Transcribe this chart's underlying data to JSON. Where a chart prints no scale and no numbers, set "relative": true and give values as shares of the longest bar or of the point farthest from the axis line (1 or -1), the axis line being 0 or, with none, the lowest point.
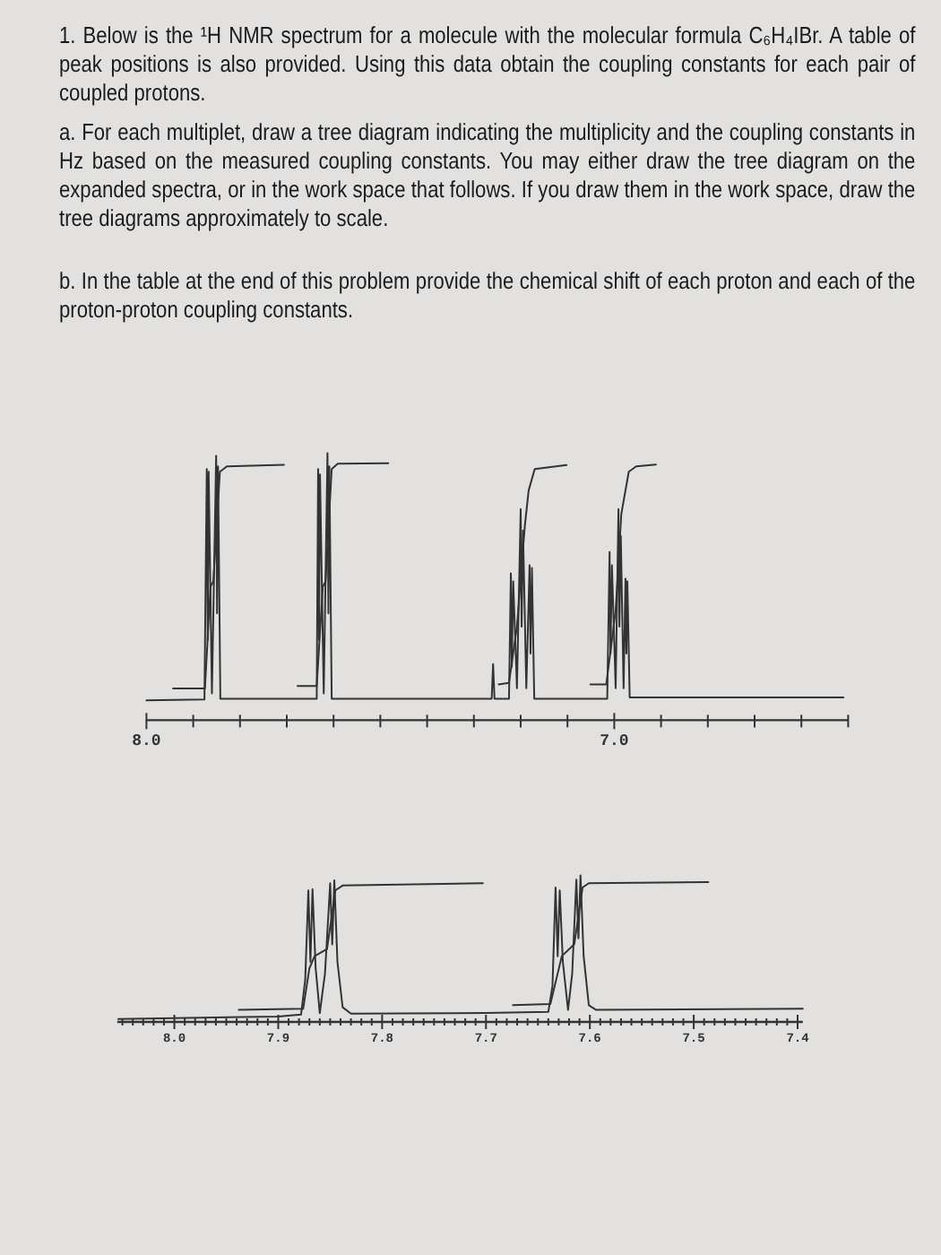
{
  "chart_data": [
    {
      "type": "line",
      "title": "1. Below is the ¹H NMR spectrum for a molecule with the molecular formula C₆H₄IBr. A table of peak positions is also provided. Using this data obtain the coupling constants for each pair of coupled protons.",
      "annotations": [
        "a. For each multiplet, draw a tree diagram indicating the multiplicity and the coupling constants in Hz based on the measured coupling constants. You may either draw the tree diagram on the expanded spectra, or in the work space that follows. If you draw them in the work space, draw the tree diagrams approximately to scale.",
        "b. In the table at the end of this problem provide the chemical shift of each proton and each of the proton-proton coupling constants."
      ],
      "relative": true,
      "xlim": [
        8.0,
        6.5
      ],
      "xticks": [
        {
          "value": 8.0,
          "label": "8.0"
        },
        {
          "value": 7.9,
          "label": null
        },
        {
          "value": 7.8,
          "label": null
        },
        {
          "value": 7.7,
          "label": null
        },
        {
          "value": 7.6,
          "label": null
        },
        {
          "value": 7.5,
          "label": null
        },
        {
          "value": 7.4,
          "label": null
        },
        {
          "value": 7.3,
          "label": null
        },
        {
          "value": 7.2,
          "label": null
        },
        {
          "value": 7.1,
          "label": null
        },
        {
          "value": 7.0,
          "label": "7.0"
        },
        {
          "value": 6.9,
          "label": null
        },
        {
          "value": 6.8,
          "label": null
        },
        {
          "value": 6.7,
          "label": null
        },
        {
          "value": 6.6,
          "label": null
        },
        {
          "value": 6.5,
          "label": null
        }
      ],
      "series": [
        {
          "color": "#333333",
          "x": [
            8.0,
            7.876,
            7.871,
            7.869,
            7.867,
            7.86,
            7.851,
            7.849,
            7.847,
            7.842,
            7.636,
            7.633,
            7.631,
            7.629,
            7.621,
            7.613,
            7.611,
            7.609,
            7.604,
            7.262,
            7.259,
            7.256,
            7.225,
            7.221,
            7.219,
            7.216,
            7.208,
            7.2,
            7.198,
            7.195,
            7.188,
            7.181,
            7.179,
            7.176,
            7.171,
            7.015,
            7.01,
            7.008,
            7.005,
            6.997,
            6.991,
            6.989,
            6.986,
            6.98,
            6.976,
            6.974,
            6.972,
            6.967,
            6.51
          ],
          "values": [
            0.074,
            0.078,
            0.94,
            0.3,
            0.93,
            0.1,
            0.99,
            0.4,
            0.95,
            0.08,
            0.08,
            0.94,
            0.3,
            0.92,
            0.1,
            1.0,
            0.4,
            0.95,
            0.08,
            0.08,
            0.21,
            0.08,
            0.08,
            0.55,
            0.2,
            0.52,
            0.12,
            0.79,
            0.35,
            0.71,
            0.12,
            0.58,
            0.25,
            0.57,
            0.08,
            0.08,
            0.63,
            0.25,
            0.58,
            0.12,
            0.79,
            0.35,
            0.69,
            0.12,
            0.53,
            0.25,
            0.52,
            0.085,
            0.085
          ]
        },
        {
          "color": "#333333",
          "x": [
            7.943,
            7.875,
            7.863,
            7.857,
            7.843,
            7.828,
            7.706,
            7.69,
            7.677,
            7.636,
            7.623,
            7.617,
            7.604,
            7.591,
            7.483,
            7.4,
            7.247,
            7.225,
            7.208,
            7.191,
            7.183,
            7.17,
            7.102,
            7.08,
            7.051,
            7.017,
            6.997,
            6.985,
            6.969,
            6.953,
            6.911
          ],
          "values": [
            0.119,
            0.119,
            0.5,
            0.52,
            0.93,
            0.95,
            0.956,
            null,
            0.128,
            0.128,
            0.5,
            0.52,
            0.94,
            0.96,
            0.962,
            null,
            0.134,
            0.14,
            0.35,
            0.73,
            0.86,
            0.94,
            0.955,
            null,
            0.134,
            0.134,
            0.41,
            0.77,
            0.93,
            0.95,
            0.957
          ]
        }
      ]
    },
    {
      "type": "line",
      "relative": true,
      "xlim": [
        8.055,
        7.395
      ],
      "xticks": [
        {
          "value": 8.05,
          "label": null
        },
        {
          "value": 8.04,
          "label": null
        },
        {
          "value": 8.03,
          "label": null
        },
        {
          "value": 8.02,
          "label": null
        },
        {
          "value": 8.01,
          "label": null
        },
        {
          "value": 8.0,
          "label": "8.0"
        },
        {
          "value": 7.99,
          "label": null
        },
        {
          "value": 7.98,
          "label": null
        },
        {
          "value": 7.97,
          "label": null
        },
        {
          "value": 7.96,
          "label": null
        },
        {
          "value": 7.95,
          "label": null
        },
        {
          "value": 7.94,
          "label": null
        },
        {
          "value": 7.93,
          "label": null
        },
        {
          "value": 7.92,
          "label": null
        },
        {
          "value": 7.91,
          "label": null
        },
        {
          "value": 7.9,
          "label": "7.9"
        },
        {
          "value": 7.89,
          "label": null
        },
        {
          "value": 7.88,
          "label": null
        },
        {
          "value": 7.87,
          "label": null
        },
        {
          "value": 7.86,
          "label": null
        },
        {
          "value": 7.85,
          "label": null
        },
        {
          "value": 7.84,
          "label": null
        },
        {
          "value": 7.83,
          "label": null
        },
        {
          "value": 7.82,
          "label": null
        },
        {
          "value": 7.81,
          "label": null
        },
        {
          "value": 7.8,
          "label": "7.8"
        },
        {
          "value": 7.79,
          "label": null
        },
        {
          "value": 7.78,
          "label": null
        },
        {
          "value": 7.77,
          "label": null
        },
        {
          "value": 7.76,
          "label": null
        },
        {
          "value": 7.75,
          "label": null
        },
        {
          "value": 7.74,
          "label": null
        },
        {
          "value": 7.73,
          "label": null
        },
        {
          "value": 7.72,
          "label": null
        },
        {
          "value": 7.71,
          "label": null
        },
        {
          "value": 7.7,
          "label": "7.7"
        },
        {
          "value": 7.69,
          "label": null
        },
        {
          "value": 7.68,
          "label": null
        },
        {
          "value": 7.67,
          "label": null
        },
        {
          "value": 7.66,
          "label": null
        },
        {
          "value": 7.65,
          "label": null
        },
        {
          "value": 7.64,
          "label": null
        },
        {
          "value": 7.63,
          "label": null
        },
        {
          "value": 7.62,
          "label": null
        },
        {
          "value": 7.61,
          "label": null
        },
        {
          "value": 7.6,
          "label": "7.6"
        },
        {
          "value": 7.59,
          "label": null
        },
        {
          "value": 7.58,
          "label": null
        },
        {
          "value": 7.57,
          "label": null
        },
        {
          "value": 7.56,
          "label": null
        },
        {
          "value": 7.55,
          "label": null
        },
        {
          "value": 7.54,
          "label": null
        },
        {
          "value": 7.53,
          "label": null
        },
        {
          "value": 7.52,
          "label": null
        },
        {
          "value": 7.51,
          "label": null
        },
        {
          "value": 7.5,
          "label": "7.5"
        },
        {
          "value": 7.49,
          "label": null
        },
        {
          "value": 7.48,
          "label": null
        },
        {
          "value": 7.47,
          "label": null
        },
        {
          "value": 7.46,
          "label": null
        },
        {
          "value": 7.45,
          "label": null
        },
        {
          "value": 7.44,
          "label": null
        },
        {
          "value": 7.43,
          "label": null
        },
        {
          "value": 7.42,
          "label": null
        },
        {
          "value": 7.41,
          "label": null
        },
        {
          "value": 7.4,
          "label": "7.4"
        }
      ],
      "series": [
        {
          "color": "#333333",
          "x": [
            8.054,
            7.9,
            7.878,
            7.874,
            7.871,
            7.869,
            7.867,
            7.864,
            7.86,
            7.855,
            7.85,
            7.848,
            7.846,
            7.843,
            7.838,
            7.83,
            7.7,
            7.64,
            7.636,
            7.633,
            7.631,
            7.629,
            7.626,
            7.621,
            7.617,
            7.613,
            7.611,
            7.609,
            7.606,
            7.601,
            7.594,
            7.395
          ],
          "values": [
            0.02,
            0.037,
            0.05,
            0.29,
            0.898,
            0.41,
            0.906,
            0.37,
            0.06,
            0.33,
            0.947,
            0.53,
            0.967,
            0.41,
            0.1,
            0.057,
            0.061,
            0.069,
            0.245,
            0.918,
            0.449,
            0.898,
            0.41,
            0.082,
            0.33,
            0.971,
            0.571,
            1.0,
            0.45,
            0.114,
            0.082,
            0.09
          ]
        },
        {
          "color": "#333333",
          "x": [
            7.938,
            7.876,
            7.87,
            7.865,
            7.853,
            7.845,
            7.838,
            7.703,
            7.69,
            7.674,
            7.638,
            7.627,
            7.615,
            7.607,
            7.601,
            7.486
          ],
          "values": [
            0.082,
            0.09,
            0.367,
            0.449,
            0.498,
            0.898,
            0.931,
            0.947,
            null,
            0.114,
            0.122,
            0.449,
            0.531,
            0.918,
            0.947,
            0.955
          ]
        }
      ]
    }
  ]
}
